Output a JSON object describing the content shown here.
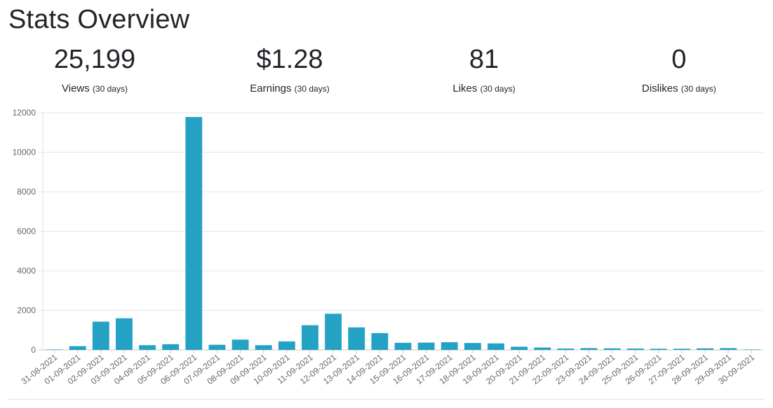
{
  "header": {
    "title": "Stats Overview"
  },
  "stats": [
    {
      "value": "25,199",
      "label": "Views",
      "suffix": "(30 days)"
    },
    {
      "value": "$1.28",
      "label": "Earnings",
      "suffix": "(30 days)"
    },
    {
      "value": "81",
      "label": "Likes",
      "suffix": "(30 days)"
    },
    {
      "value": "0",
      "label": "Dislikes",
      "suffix": "(30 days)"
    }
  ],
  "chart_data": {
    "type": "bar",
    "title": "",
    "xlabel": "",
    "ylabel": "",
    "ylim": [
      0,
      12000
    ],
    "yticks": [
      "0",
      "2000",
      "4000",
      "6000",
      "8000",
      "10000",
      "12000"
    ],
    "grid": true,
    "legend": "none",
    "bar_color": "#24a2c4",
    "categories": [
      "31-08-2021",
      "01-09-2021",
      "02-09-2021",
      "03-09-2021",
      "04-09-2021",
      "05-09-2021",
      "06-09-2021",
      "07-09-2021",
      "08-09-2021",
      "09-09-2021",
      "10-09-2021",
      "11-09-2021",
      "12-09-2021",
      "13-09-2021",
      "14-09-2021",
      "15-09-2021",
      "16-09-2021",
      "17-09-2021",
      "18-09-2021",
      "19-09-2021",
      "20-09-2021",
      "21-09-2021",
      "22-09-2021",
      "23-09-2021",
      "24-09-2021",
      "25-09-2021",
      "26-09-2021",
      "27-09-2021",
      "28-09-2021",
      "29-09-2021",
      "30-09-2021"
    ],
    "values": [
      10,
      190,
      1430,
      1600,
      240,
      290,
      11780,
      260,
      520,
      240,
      430,
      1250,
      1830,
      1140,
      850,
      360,
      370,
      390,
      350,
      330,
      160,
      120,
      70,
      90,
      80,
      70,
      60,
      60,
      80,
      90,
      5
    ]
  }
}
